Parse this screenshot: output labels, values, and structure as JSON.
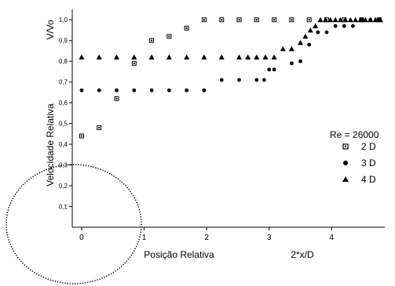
{
  "chart_data": {
    "type": "scatter",
    "title": "",
    "ylabel_top": "V/Vo",
    "ylabel": "Velocidade Relativa",
    "xlabel": "Posição Relativa",
    "xlabel_right": "2*x/D",
    "xlim": [
      -0.15,
      4.85
    ],
    "ylim": [
      0.0,
      1.05
    ],
    "x_ticks": [
      "0",
      "1",
      "2",
      "3",
      "4"
    ],
    "y_ticks": [
      "0,1",
      "0,2",
      "0,3",
      "0,4",
      "0,5",
      "0,6",
      "0,7",
      "0,8",
      "0,9",
      "1,0"
    ],
    "legend_title": "Re = 26000",
    "legend_position": "right",
    "series": [
      {
        "name": "2 D",
        "marker": "square",
        "points": [
          [
            0.0,
            0.44
          ],
          [
            0.28,
            0.48
          ],
          [
            0.56,
            0.62
          ],
          [
            0.84,
            0.79
          ],
          [
            1.12,
            0.9
          ],
          [
            1.4,
            0.92
          ],
          [
            1.68,
            0.96
          ],
          [
            1.96,
            1.0
          ],
          [
            2.24,
            1.0
          ],
          [
            2.52,
            1.0
          ],
          [
            2.8,
            1.0
          ],
          [
            3.08,
            1.0
          ],
          [
            3.36,
            1.0
          ],
          [
            3.64,
            1.0
          ],
          [
            3.92,
            1.0
          ],
          [
            4.2,
            1.0
          ],
          [
            4.48,
            1.0
          ],
          [
            4.76,
            1.0
          ]
        ]
      },
      {
        "name": "3 D",
        "marker": "circle",
        "points": [
          [
            0.0,
            0.66
          ],
          [
            0.28,
            0.66
          ],
          [
            0.56,
            0.66
          ],
          [
            0.84,
            0.66
          ],
          [
            1.12,
            0.66
          ],
          [
            1.4,
            0.66
          ],
          [
            1.68,
            0.66
          ],
          [
            1.96,
            0.66
          ],
          [
            2.24,
            0.71
          ],
          [
            2.52,
            0.71
          ],
          [
            2.8,
            0.71
          ],
          [
            2.92,
            0.71
          ],
          [
            3.0,
            0.76
          ],
          [
            3.08,
            0.76
          ],
          [
            3.36,
            0.79
          ],
          [
            3.5,
            0.8
          ],
          [
            3.64,
            0.88
          ],
          [
            3.78,
            0.94
          ],
          [
            3.92,
            0.94
          ],
          [
            4.06,
            0.97
          ],
          [
            4.2,
            0.97
          ],
          [
            4.34,
            0.97
          ],
          [
            4.48,
            1.0
          ],
          [
            4.62,
            1.0
          ],
          [
            4.76,
            1.0
          ]
        ]
      },
      {
        "name": "4 D",
        "marker": "triangle",
        "points": [
          [
            0.0,
            0.82
          ],
          [
            0.28,
            0.82
          ],
          [
            0.56,
            0.82
          ],
          [
            0.84,
            0.82
          ],
          [
            1.12,
            0.82
          ],
          [
            1.4,
            0.82
          ],
          [
            1.68,
            0.82
          ],
          [
            1.96,
            0.82
          ],
          [
            2.24,
            0.82
          ],
          [
            2.52,
            0.82
          ],
          [
            2.66,
            0.82
          ],
          [
            2.8,
            0.82
          ],
          [
            2.94,
            0.82
          ],
          [
            3.08,
            0.82
          ],
          [
            3.22,
            0.86
          ],
          [
            3.36,
            0.86
          ],
          [
            3.5,
            0.89
          ],
          [
            3.58,
            0.92
          ],
          [
            3.66,
            0.95
          ],
          [
            3.74,
            0.97
          ],
          [
            3.82,
            1.0
          ],
          [
            3.9,
            1.0
          ],
          [
            3.98,
            1.0
          ],
          [
            4.06,
            1.0
          ],
          [
            4.14,
            1.0
          ],
          [
            4.22,
            1.0
          ],
          [
            4.3,
            1.0
          ],
          [
            4.38,
            1.0
          ],
          [
            4.46,
            1.0
          ],
          [
            4.54,
            1.0
          ],
          [
            4.62,
            1.0
          ],
          [
            4.7,
            1.0
          ],
          [
            4.78,
            1.0
          ]
        ]
      }
    ],
    "overlay": "dotted-ellipse"
  }
}
